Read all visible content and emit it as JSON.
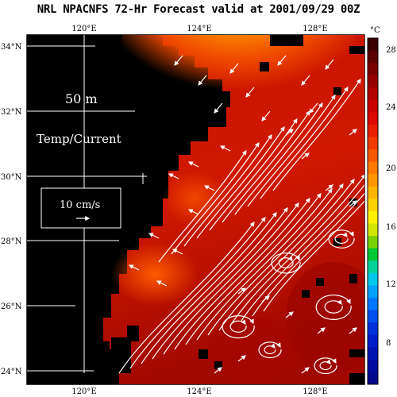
{
  "title": "NRL NPACNFS 72-Hr Forecast valid at 2001/09/29 00Z",
  "map": {
    "depth_label": "50 m",
    "field_label": "Temp/Current",
    "scale_vector_label": "10 cm/s"
  },
  "axes": {
    "lon_ticks_top": [
      "120°E",
      "124°E",
      "128°E"
    ],
    "lon_ticks_bottom": [
      "120°E",
      "124°E",
      "128°E"
    ],
    "lat_ticks": [
      "34°N",
      "32°N",
      "30°N",
      "28°N",
      "26°N",
      "24°N"
    ]
  },
  "colorbar": {
    "unit": "°C",
    "tick_labels": [
      "28",
      "24",
      "20",
      "16",
      "12",
      "8"
    ],
    "colors": [
      "#3a0000",
      "#5a0000",
      "#7a0000",
      "#960000",
      "#b00000",
      "#c80000",
      "#dc0a00",
      "#e82000",
      "#f03c00",
      "#f85a00",
      "#ff7800",
      "#ff9600",
      "#ffb400",
      "#ffd200",
      "#fff000",
      "#d2e600",
      "#78d200",
      "#00c832",
      "#00d29b",
      "#00c8e6",
      "#00a0ff",
      "#0078ff",
      "#0050f0",
      "#0032dc",
      "#001ec8",
      "#0014b4",
      "#000ca0",
      "#00088c"
    ]
  },
  "colors": {
    "land": "#000000",
    "background": "#ffffff",
    "grid_lines": "#ffffff",
    "current_vectors": "#ffffff"
  }
}
